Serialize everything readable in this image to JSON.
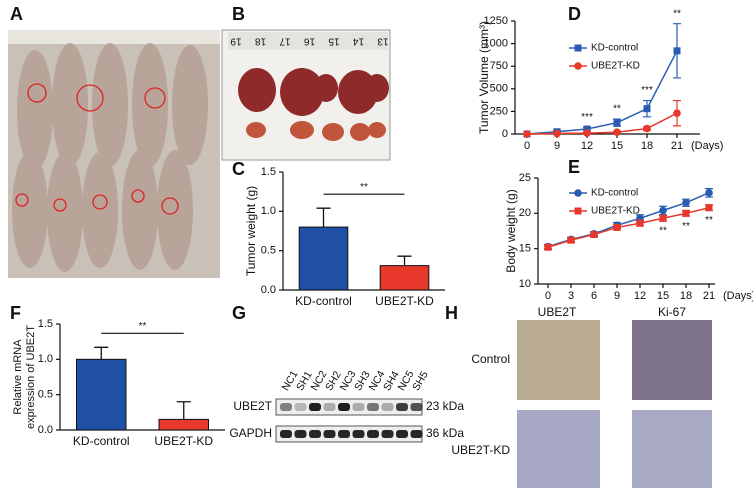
{
  "panel_labels": [
    "A",
    "B",
    "C",
    "D",
    "E",
    "F",
    "G",
    "H"
  ],
  "chart_data": [
    {
      "type": "bar",
      "y_label": "Tumor weight (g)",
      "categories": [
        "KD-control",
        "UBE2T-KD"
      ],
      "values": [
        0.8,
        0.31
      ],
      "errors": [
        0.24,
        0.12
      ],
      "colors": [
        "#2050a6",
        "#e8372b"
      ],
      "ylim": [
        0,
        1.5
      ],
      "yticks": [
        {
          "value": 0,
          "label": "0.0"
        },
        0.5,
        {
          "value": 1,
          "label": "1.0"
        },
        1.5
      ],
      "significance": "**"
    },
    {
      "type": "line",
      "y_label": "Tumor Volume (mm³)",
      "x_label": "(Days)",
      "categories": [
        "0",
        "9",
        "12",
        "15",
        "18",
        "21"
      ],
      "series": [
        {
          "name": "KD-control",
          "color": "#2a5db0",
          "marker": "square",
          "values": [
            0,
            25,
            55,
            125,
            280,
            920
          ],
          "errors": [
            0,
            15,
            20,
            40,
            90,
            300
          ]
        },
        {
          "name": "UBE2T-KD",
          "color": "#e8372b",
          "marker": "circle",
          "values": [
            0,
            5,
            10,
            20,
            60,
            230
          ],
          "errors": [
            0,
            5,
            6,
            10,
            20,
            140
          ]
        }
      ],
      "annotations": [
        null,
        null,
        "***",
        "**",
        "***",
        "**"
      ],
      "ylim": [
        0,
        1250
      ],
      "yticks": [
        0,
        250,
        500,
        750,
        1000,
        1250
      ]
    },
    {
      "type": "line",
      "y_label": "Body weight (g)",
      "x_label": "(Days)",
      "categories": [
        "0",
        "3",
        "6",
        "9",
        "12",
        "15",
        "18",
        "21"
      ],
      "series": [
        {
          "name": "KD-control",
          "color": "#2a5db0",
          "marker": "circle",
          "values": [
            15.3,
            16.3,
            17.1,
            18.3,
            19.3,
            20.4,
            21.5,
            22.9
          ],
          "errors": [
            0.3,
            0.3,
            0.3,
            0.4,
            0.5,
            0.6,
            0.5,
            0.6
          ]
        },
        {
          "name": "UBE2T-KD",
          "color": "#e8372b",
          "marker": "square",
          "values": [
            15.2,
            16.2,
            17.0,
            18.0,
            18.6,
            19.3,
            20.0,
            20.8
          ],
          "errors": [
            0.3,
            0.3,
            0.3,
            0.3,
            0.4,
            0.4,
            0.4,
            0.4
          ]
        }
      ],
      "annotations": [
        null,
        null,
        null,
        null,
        null,
        "**",
        "**",
        "**"
      ],
      "ylim": [
        10,
        25
      ],
      "yticks": [
        10,
        15,
        20,
        25
      ]
    },
    {
      "type": "bar",
      "y_label": [
        "Relative mRNA",
        "expression of UBE2T"
      ],
      "categories": [
        "KD-control",
        "UBE2T-KD"
      ],
      "values": [
        1.0,
        0.15
      ],
      "errors": [
        0.17,
        0.25
      ],
      "colors": [
        "#2050a6",
        "#e8372b"
      ],
      "ylim": [
        0,
        1.5
      ],
      "yticks": [
        {
          "value": 0,
          "label": "0.0"
        },
        0.5,
        {
          "value": 1,
          "label": "1.0"
        },
        1.5
      ],
      "significance": "**"
    }
  ],
  "western_blot": {
    "lanes": [
      "NC1",
      "SH1",
      "NC2",
      "SH2",
      "NC3",
      "SH3",
      "NC4",
      "SH4",
      "NC5",
      "SH5"
    ],
    "rows": [
      {
        "protein": "UBE2T",
        "size": "23 kDa"
      },
      {
        "protein": "GAPDH",
        "size": "36 kDa"
      }
    ]
  },
  "ihc": {
    "columns": [
      "UBE2T",
      "Ki-67"
    ],
    "rows": [
      "Control",
      "UBE2T-KD"
    ]
  },
  "photo_b_ruler": [
    "19",
    "18",
    "17",
    "16",
    "15",
    "14",
    "13"
  ]
}
